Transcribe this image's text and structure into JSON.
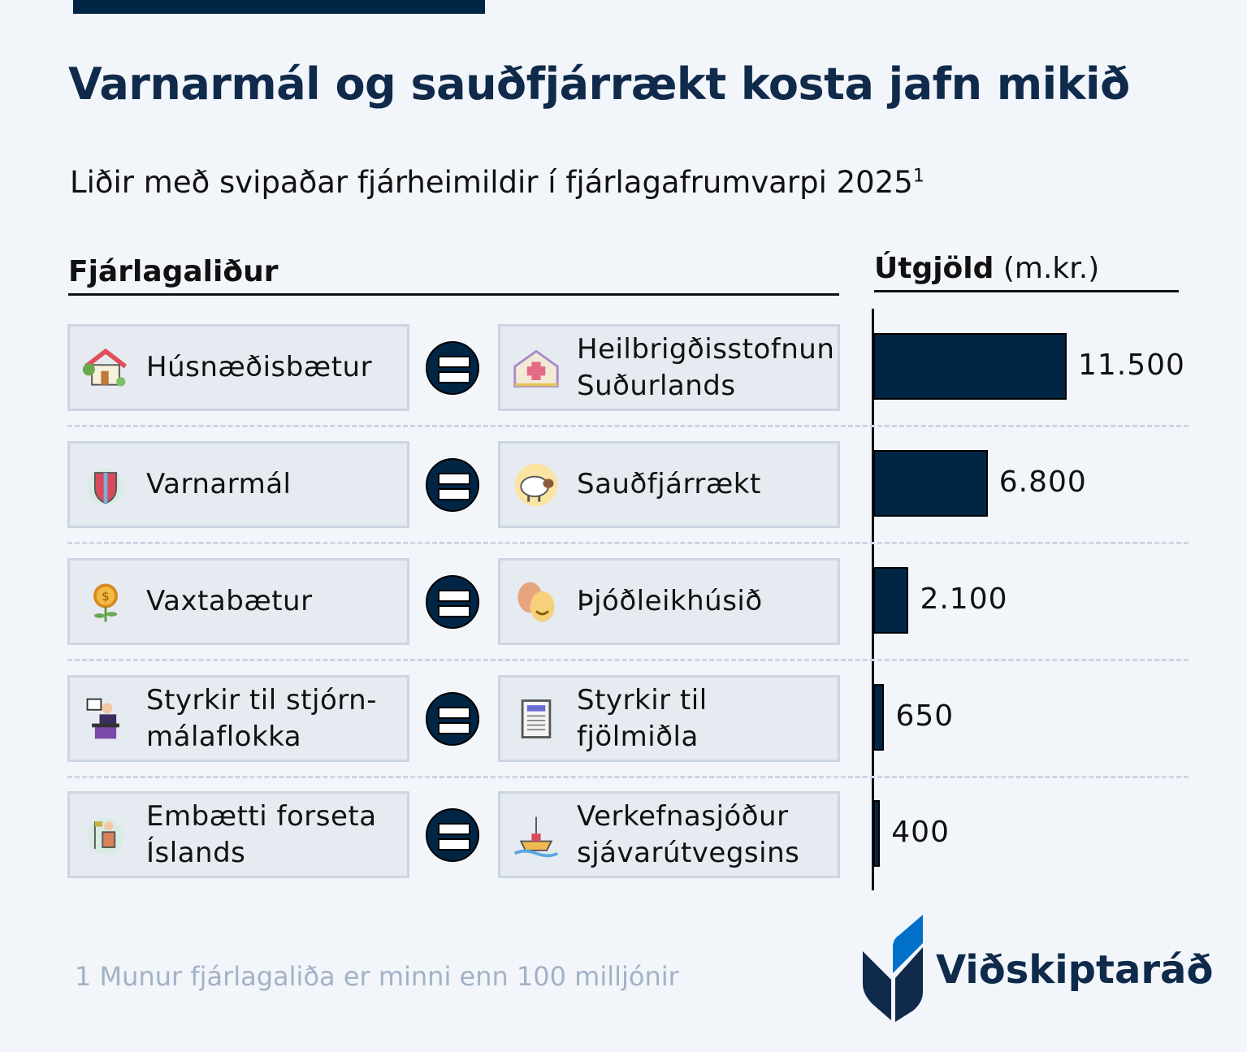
{
  "title": "Varnarmál og sauðfjárrækt kosta jafn mikið",
  "subtitle": "Liðir með svipaðar fjárheimildir í fjárlagafrumvarpi 2025",
  "subtitle_footnote_mark": "1",
  "header_left": "Fjárlagaliður",
  "header_right_bold": "Útgjöld",
  "header_right_unit": "(m.kr.)",
  "footnote": "1 Munur fjárlagaliða er minni enn 100 milljónir",
  "logo_text": "Viðskiptaráð",
  "colors": {
    "bar": "#012545",
    "background": "#f2f5fa",
    "box": "#e6eaf1",
    "logo_accent": "#0070c9"
  },
  "chart_data": {
    "type": "bar",
    "orientation": "horizontal",
    "categories": [
      [
        "Húsnæðisbætur",
        "Heilbrigðisstofnun Suðurlands"
      ],
      [
        "Varnarmál",
        "Sauðfjárrækt"
      ],
      [
        "Vaxtabætur",
        "Þjóðleikhúsið"
      ],
      [
        "Styrkir til stjórn-málaflokka",
        "Styrkir til fjölmiðla"
      ],
      [
        "Embætti forseta Íslands",
        "Verkefnasjóður sjávarútvegsins"
      ]
    ],
    "values": [
      11500,
      6800,
      2100,
      650,
      400
    ],
    "value_labels": [
      "11.500",
      "6.800",
      "2.100",
      "650",
      "400"
    ],
    "xlabel": "Útgjöld (m.kr.)",
    "xlim": [
      0,
      11500
    ]
  },
  "rows": [
    {
      "left": "Húsnæðisbætur",
      "left_icon": "house-icon",
      "right": "Heilbrigðisstofnun Suðurlands",
      "right_lines": [
        "Heilbrigðisstofnun",
        "Suðurlands"
      ],
      "right_icon": "hospital-icon",
      "value": "11.500"
    },
    {
      "left": "Varnarmál",
      "left_icon": "shield-icon",
      "right": "Sauðfjárrækt",
      "right_lines": [
        "Sauðfjárrækt"
      ],
      "right_icon": "sheep-icon",
      "value": "6.800"
    },
    {
      "left": "Vaxtabætur",
      "left_icon": "money-flower-icon",
      "right": "Þjóðleikhúsið",
      "right_lines": [
        "Þjóðleikhúsið"
      ],
      "right_icon": "theater-masks-icon",
      "value": "2.100"
    },
    {
      "left": "Styrkir til stjórn-málaflokka",
      "left_lines": [
        "Styrkir til stjórn-",
        "málaflokka"
      ],
      "left_icon": "politician-podium-icon",
      "right": "Styrkir til fjölmiðla",
      "right_lines": [
        "Styrkir til",
        "fjölmiðla"
      ],
      "right_icon": "newspaper-icon",
      "value": "650"
    },
    {
      "left": "Embætti forseta Íslands",
      "left_lines": [
        "Embætti forseta",
        "Íslands"
      ],
      "left_icon": "president-flag-icon",
      "right": "Verkefnasjóður sjávarútvegsins",
      "right_lines": [
        "Verkefnasjóður",
        "sjávarútvegsins"
      ],
      "right_icon": "fishing-boat-icon",
      "value": "400"
    }
  ]
}
